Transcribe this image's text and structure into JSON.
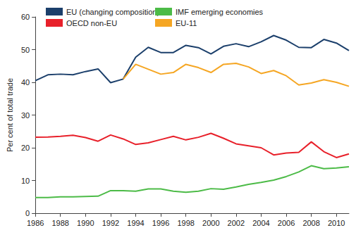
{
  "chart_data": {
    "type": "line",
    "y_label": "Per cent of total trade",
    "x": [
      1986,
      1987,
      1988,
      1989,
      1990,
      1991,
      1992,
      1993,
      1994,
      1995,
      1996,
      1997,
      1998,
      1999,
      2000,
      2001,
      2002,
      2003,
      2004,
      2005,
      2006,
      2007,
      2008,
      2009,
      2010,
      2011
    ],
    "series": [
      {
        "name": "EU (changing composition)",
        "color": "#1b3f6b",
        "values": [
          40.5,
          42.3,
          42.5,
          42.3,
          43.3,
          44.1,
          39.9,
          41.0,
          47.7,
          50.7,
          49.1,
          49.1,
          51.3,
          50.6,
          48.7,
          51.0,
          51.8,
          50.9,
          52.4,
          54.3,
          52.9,
          50.7,
          50.6,
          53.1,
          52.0,
          49.7
        ]
      },
      {
        "name": "OECD non-EU",
        "color": "#e8202a",
        "values": [
          23.2,
          23.3,
          23.5,
          23.8,
          23.1,
          22.0,
          23.9,
          22.7,
          21.0,
          21.5,
          22.5,
          23.5,
          22.4,
          23.2,
          24.4,
          22.9,
          21.2,
          20.6,
          20.0,
          17.8,
          18.4,
          18.6,
          21.8,
          18.8,
          17.0,
          18.1
        ]
      },
      {
        "name": "IMF emerging economies",
        "color": "#4cbb47",
        "values": [
          4.8,
          4.8,
          5.0,
          5.0,
          5.1,
          5.2,
          6.9,
          6.9,
          6.7,
          7.4,
          7.4,
          6.7,
          6.4,
          6.7,
          7.5,
          7.3,
          8.0,
          8.8,
          9.4,
          10.1,
          11.2,
          12.6,
          14.5,
          13.6,
          13.8,
          14.2
        ]
      },
      {
        "name": "EU-11",
        "color": "#f5a623",
        "values": [
          null,
          null,
          null,
          null,
          null,
          null,
          null,
          41.0,
          45.5,
          44.0,
          42.5,
          43.0,
          45.5,
          44.5,
          43.0,
          45.5,
          45.8,
          44.7,
          42.7,
          43.6,
          42.0,
          39.2,
          39.8,
          40.8,
          40.0,
          38.8
        ]
      }
    ],
    "xlim": [
      1986,
      2011
    ],
    "xticks": [
      1986,
      1988,
      1990,
      1992,
      1994,
      1996,
      1998,
      2000,
      2002,
      2004,
      2006,
      2008,
      2010
    ],
    "ylim": [
      0,
      60
    ],
    "yticks": [
      0,
      10,
      20,
      30,
      40,
      50,
      60
    ],
    "grid": false,
    "legend": "upper left"
  }
}
